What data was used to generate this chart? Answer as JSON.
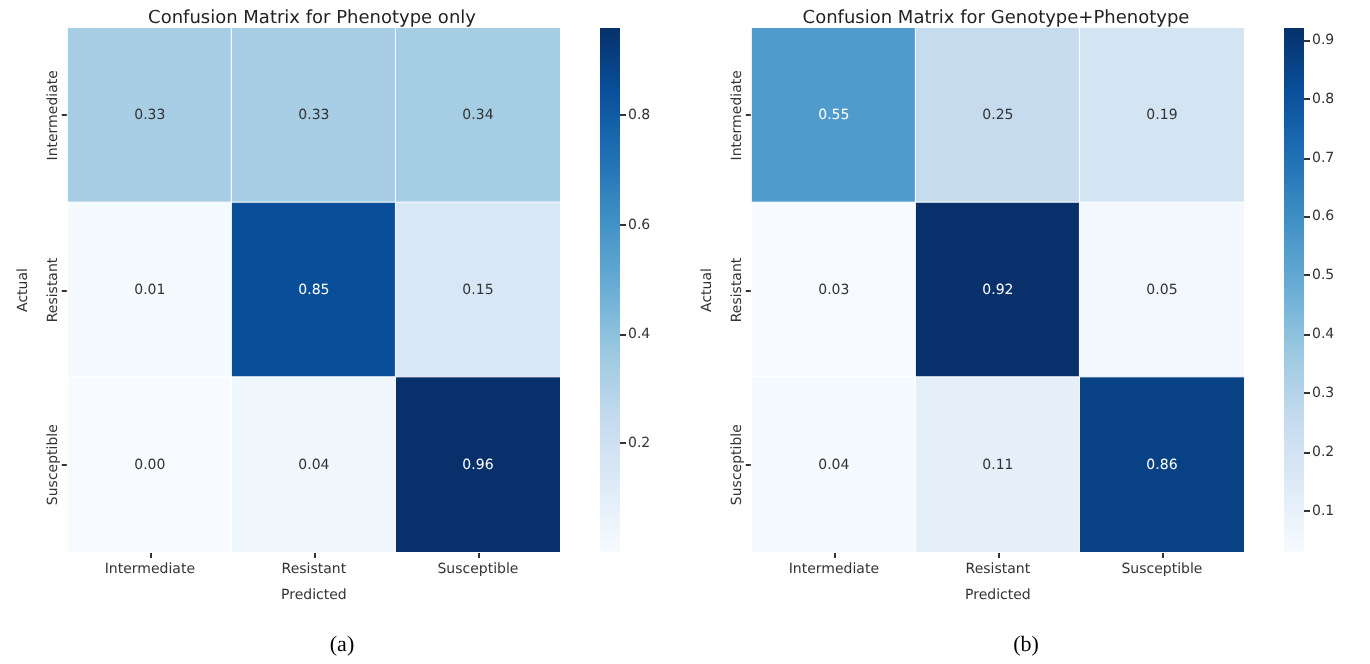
{
  "chart_data": [
    {
      "type": "heatmap",
      "title": "Confusion Matrix for Phenotype only",
      "xlabel": "Predicted",
      "ylabel": "Actual",
      "categories": [
        "Intermediate",
        "Resistant",
        "Susceptible"
      ],
      "y_categories": [
        "Intermediate",
        "Resistant",
        "Susceptible"
      ],
      "cells": [
        [
          0.33,
          0.33,
          0.34
        ],
        [
          0.01,
          0.85,
          0.15
        ],
        [
          0.0,
          0.04,
          0.96
        ]
      ],
      "cell_labels": [
        [
          "0.33",
          "0.33",
          "0.34"
        ],
        [
          "0.01",
          "0.85",
          "0.15"
        ],
        [
          "0.00",
          "0.04",
          "0.96"
        ]
      ],
      "clim": [
        0.0,
        0.96
      ],
      "cticks": [
        0.2,
        0.4,
        0.6,
        0.8
      ],
      "annotations": [
        "(a)"
      ]
    },
    {
      "type": "heatmap",
      "title": "Confusion Matrix for Genotype+Phenotype",
      "xlabel": "Predicted",
      "ylabel": "Actual",
      "categories": [
        "Intermediate",
        "Resistant",
        "Susceptible"
      ],
      "y_categories": [
        "Intermediate",
        "Resistant",
        "Susceptible"
      ],
      "cells": [
        [
          0.55,
          0.25,
          0.19
        ],
        [
          0.03,
          0.92,
          0.05
        ],
        [
          0.04,
          0.11,
          0.86
        ]
      ],
      "cell_labels": [
        [
          "0.55",
          "0.25",
          "0.19"
        ],
        [
          "0.03",
          "0.92",
          "0.05"
        ],
        [
          "0.04",
          "0.11",
          "0.86"
        ]
      ],
      "clim": [
        0.03,
        0.92
      ],
      "cticks": [
        0.1,
        0.2,
        0.3,
        0.4,
        0.5,
        0.6,
        0.7,
        0.8,
        0.9
      ],
      "annotations": [
        "(b)"
      ]
    }
  ]
}
